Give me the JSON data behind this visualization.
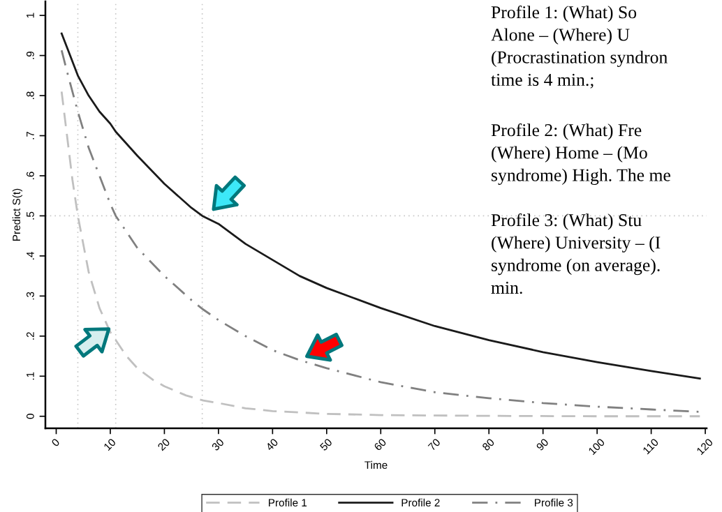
{
  "chart_data": {
    "type": "line",
    "xlabel": "Time",
    "ylabel": "Predict S(t)",
    "xlim": [
      -2,
      120.25
    ],
    "ylim": [
      -0.03,
      1.035
    ],
    "xticks": [
      0,
      10,
      20,
      30,
      40,
      50,
      60,
      70,
      80,
      90,
      100,
      110,
      120
    ],
    "yticks": [
      {
        "value": 0,
        "label": "0"
      },
      {
        "value": 0.1,
        "label": ".1"
      },
      {
        "value": 0.2,
        "label": ".2"
      },
      {
        "value": 0.3,
        "label": ".3"
      },
      {
        "value": 0.4,
        "label": ".4"
      },
      {
        "value": 0.5,
        "label": ".5"
      },
      {
        "value": 0.6,
        "label": ".6"
      },
      {
        "value": 0.7,
        "label": ".7"
      },
      {
        "value": 0.8,
        "label": ".8"
      },
      {
        "value": 0.9,
        "label": ".9"
      },
      {
        "value": 1,
        "label": "1"
      }
    ],
    "grid": false,
    "legend": "bottom",
    "series": [
      {
        "name": "Profile 1",
        "color": "#c0c0c0",
        "line_style": "dashed",
        "x": [
          1,
          2,
          3,
          4,
          5,
          6,
          8,
          10,
          11,
          13,
          15,
          18,
          20,
          24,
          27,
          30,
          35,
          40,
          50,
          60,
          70,
          80,
          100,
          119
        ],
        "values": [
          0.81,
          0.7,
          0.59,
          0.5,
          0.43,
          0.36,
          0.27,
          0.21,
          0.19,
          0.15,
          0.12,
          0.09,
          0.075,
          0.052,
          0.04,
          0.033,
          0.02,
          0.013,
          0.006,
          0.003,
          0.002,
          0.001,
          0,
          0
        ]
      },
      {
        "name": "Profile 2",
        "color": "#1a1a1a",
        "line_style": "solid",
        "x": [
          1,
          2,
          4,
          6,
          8,
          10,
          11,
          15,
          20,
          25,
          27,
          30,
          35,
          40,
          45,
          50,
          55,
          60,
          70,
          80,
          90,
          100,
          110,
          119
        ],
        "values": [
          0.955,
          0.92,
          0.85,
          0.8,
          0.76,
          0.73,
          0.71,
          0.65,
          0.58,
          0.52,
          0.5,
          0.48,
          0.43,
          0.39,
          0.35,
          0.32,
          0.295,
          0.27,
          0.225,
          0.19,
          0.16,
          0.135,
          0.113,
          0.094
        ]
      },
      {
        "name": "Profile 3",
        "color": "#808080",
        "line_style": "dashdot",
        "x": [
          1,
          2,
          4,
          6,
          8,
          10,
          11,
          15,
          20,
          25,
          27,
          30,
          35,
          40,
          45,
          50,
          60,
          70,
          80,
          90,
          100,
          110,
          119
        ],
        "values": [
          0.913,
          0.86,
          0.76,
          0.67,
          0.6,
          0.53,
          0.5,
          0.42,
          0.35,
          0.29,
          0.268,
          0.24,
          0.2,
          0.165,
          0.14,
          0.12,
          0.085,
          0.06,
          0.045,
          0.033,
          0.024,
          0.017,
          0.011
        ]
      }
    ],
    "ref_lines": [
      {
        "axis": "x",
        "value": 4,
        "color": "#c8c8c8",
        "line_style": "dotted"
      },
      {
        "axis": "x",
        "value": 11,
        "color": "#c8c8c8",
        "line_style": "dotted"
      },
      {
        "axis": "x",
        "value": 27,
        "color": "#c8c8c8",
        "line_style": "dotted"
      },
      {
        "axis": "y",
        "value": 0.5,
        "color": "#c8c8c8",
        "line_style": "dotted"
      }
    ],
    "annotations": [
      "Profile 1: (What) So\nAlone – (Where) U\n(Procrastination syndron\ntime is 4 min.;",
      "Profile 2: (What) Fre\n(Where) Home – (Mo\nsyndrome) High. The me",
      "Profile 3: (What) Stu\n(Where) University – (I\nsyndrome (on average).\nmin."
    ]
  }
}
